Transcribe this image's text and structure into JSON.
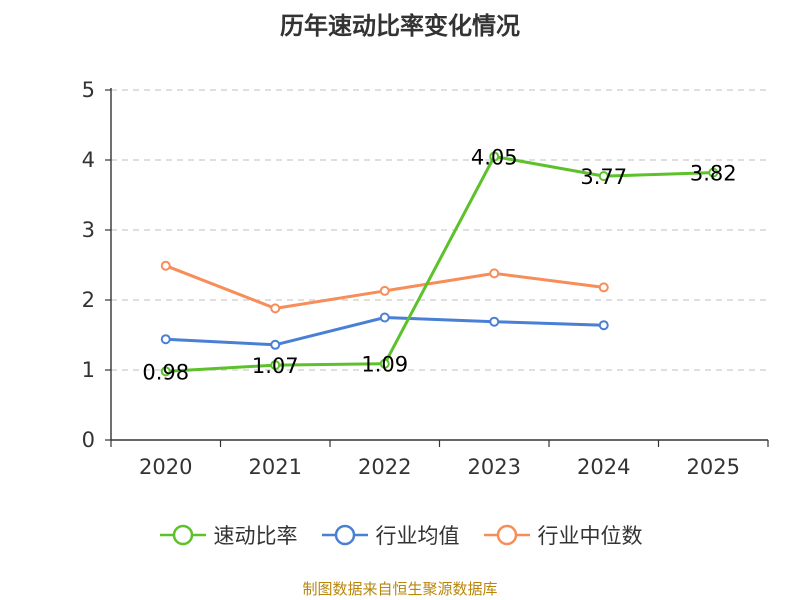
{
  "chart_data": {
    "type": "line",
    "title": "历年速动比率变化情况",
    "categories": [
      "2020",
      "2021",
      "2022",
      "2023",
      "2024",
      "2025"
    ],
    "ylim": [
      0,
      5
    ],
    "yticks": [
      0,
      1,
      2,
      3,
      4,
      5
    ],
    "grid": true,
    "legend_position": "bottom",
    "series": [
      {
        "name": "速动比率",
        "color": "#5cc12a",
        "values": [
          0.98,
          1.07,
          1.09,
          4.05,
          3.77,
          3.82
        ],
        "labels": [
          "0.98",
          "1.07",
          "1.09",
          "4.05",
          "3.77",
          "3.82"
        ],
        "show_labels": true
      },
      {
        "name": "行业均值",
        "color": "#4a7fd6",
        "values": [
          1.44,
          1.36,
          1.75,
          1.69,
          1.64,
          null
        ],
        "show_labels": false
      },
      {
        "name": "行业中位数",
        "color": "#f78d58",
        "values": [
          2.49,
          1.88,
          2.13,
          2.38,
          2.18,
          null
        ],
        "show_labels": false
      }
    ],
    "source": "制图数据来自恒生聚源数据库"
  }
}
